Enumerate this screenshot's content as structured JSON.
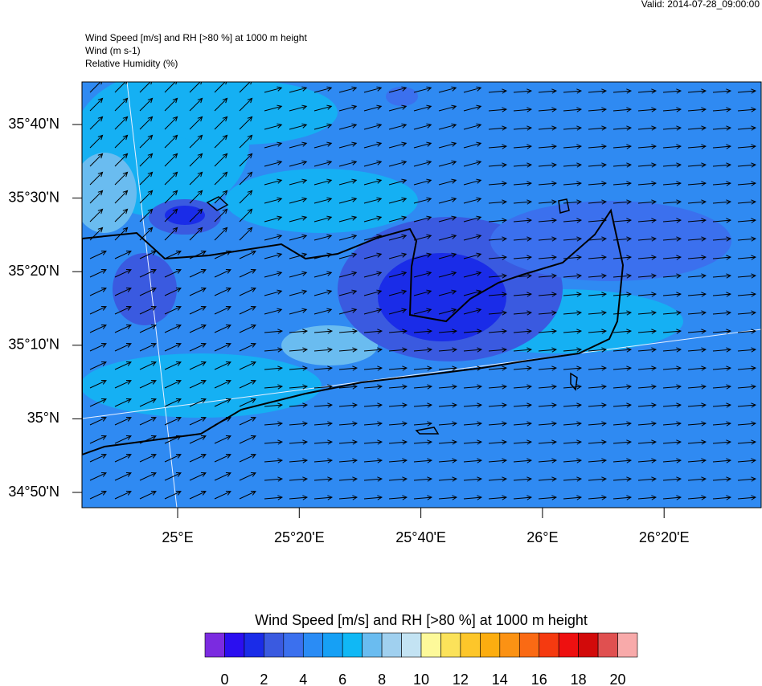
{
  "header": {
    "valid": "Valid: 2014-07-28_09:00:00",
    "title_lines": [
      "Wind Speed [m/s] and RH [>80 %] at 1000 m height",
      "Wind   (m s-1)",
      "Relative Humidity   (%)"
    ]
  },
  "map": {
    "lat_labels": [
      "35°40'N",
      "35°30'N",
      "35°20'N",
      "35°10'N",
      "35°N",
      "34°50'N"
    ],
    "lon_labels": [
      "25°E",
      "25°20'E",
      "25°40'E",
      "26°E",
      "26°20'E"
    ]
  },
  "colorbar": {
    "title": "Wind Speed [m/s] and RH [>80 %] at 1000 m height",
    "colors": [
      "#7b2be0",
      "#2b0ff0",
      "#1a2ce8",
      "#3a5ae0",
      "#3b70ee",
      "#2a8cf5",
      "#16a0f5",
      "#10b8f5",
      "#6abcf0",
      "#a0d0ef",
      "#c3e3f3",
      "#fdf99a",
      "#fbe25a",
      "#fdc62a",
      "#fcad10",
      "#fb9214",
      "#fa6a14",
      "#f53a10",
      "#ee1010",
      "#d20a0a",
      "#e05050",
      "#f8aaaa"
    ],
    "ticks": [
      0,
      2,
      4,
      6,
      8,
      10,
      12,
      14,
      16,
      18,
      20
    ]
  }
}
